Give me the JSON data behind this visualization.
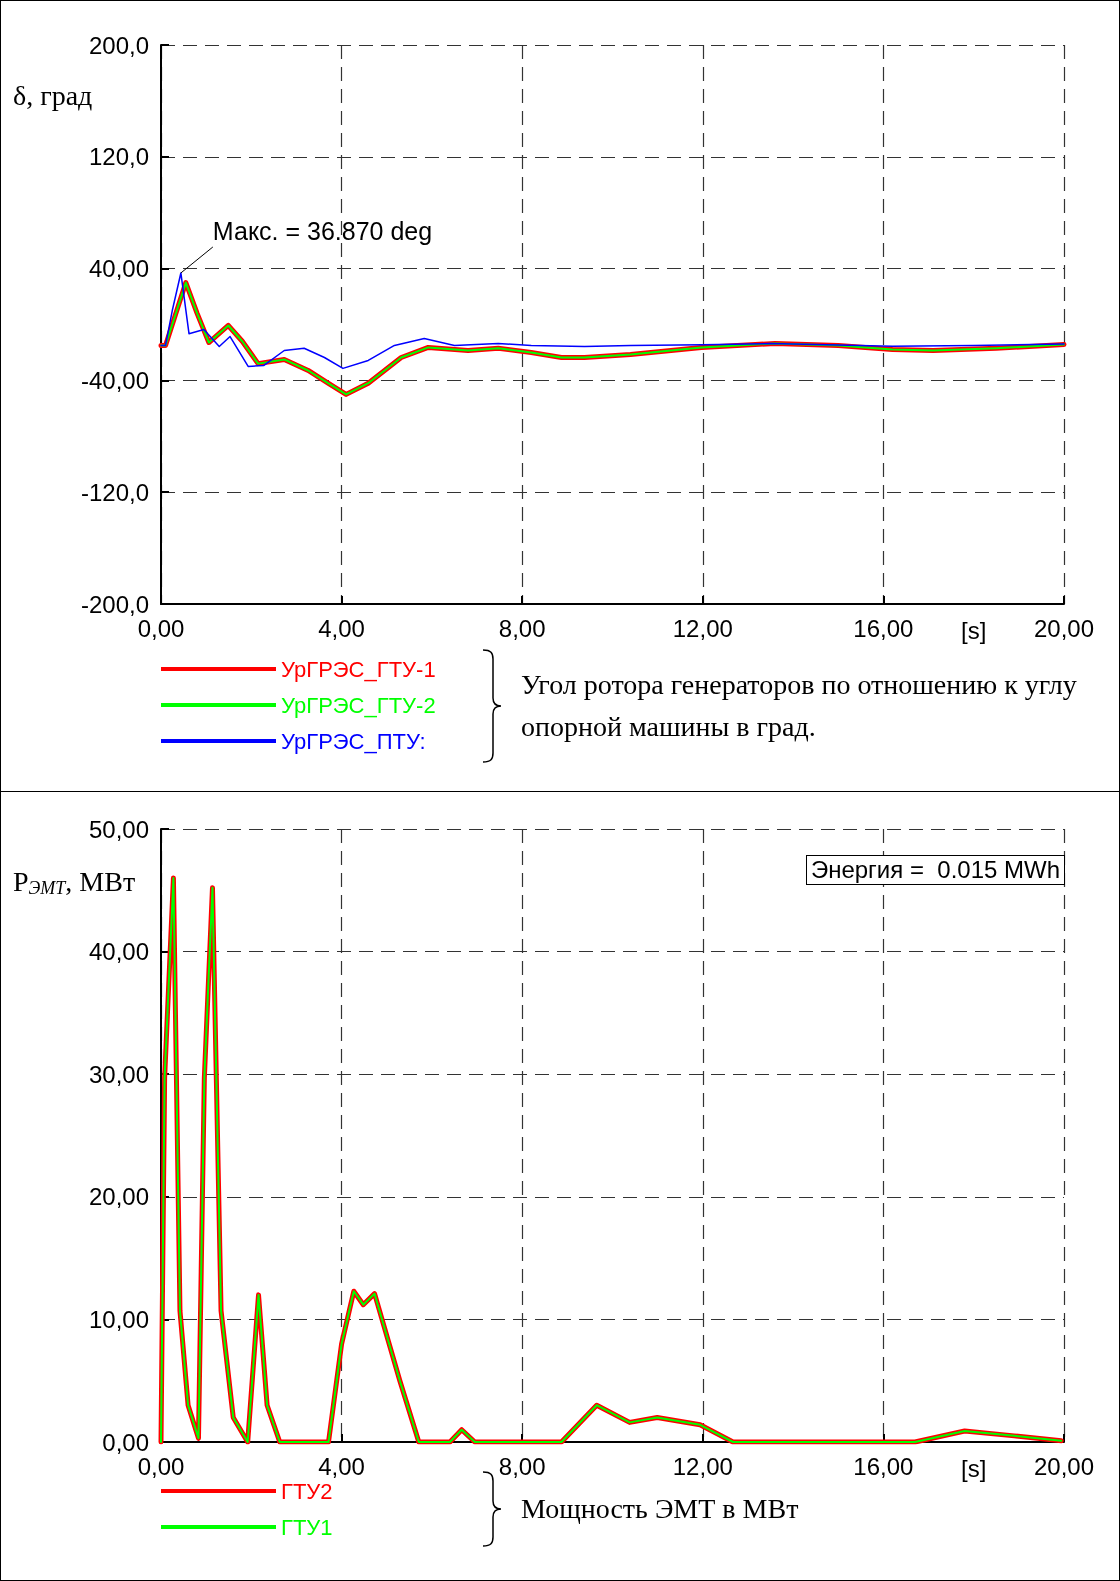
{
  "chart_data": [
    {
      "type": "line",
      "ylabel": "δ, град",
      "xlabel": "[s]",
      "xlim": [
        0,
        20
      ],
      "ylim": [
        -200,
        200
      ],
      "xticks": [
        {
          "value": 0,
          "label": "0,00"
        },
        {
          "value": 4,
          "label": "4,00"
        },
        {
          "value": 8,
          "label": "8,00"
        },
        {
          "value": 12,
          "label": "12,00"
        },
        {
          "value": 16,
          "label": "16,00"
        },
        {
          "value": 20,
          "label": "20,00"
        }
      ],
      "yticks": [
        {
          "value": -200,
          "label": "-200,0"
        },
        {
          "value": -120,
          "label": "-120,0"
        },
        {
          "value": -40,
          "label": "-40,00"
        },
        {
          "value": 40,
          "label": "40,00"
        },
        {
          "value": 120,
          "label": "120,0"
        },
        {
          "value": 200,
          "label": "200,0"
        }
      ],
      "grid": true,
      "legend": "bottom",
      "annotations": [
        {
          "text": "Макс. = 36.870 deg",
          "x": 0.44,
          "y": 36.87
        },
        "Угол ротора генераторов по отношению к углу опорной машины в град."
      ],
      "series": [
        {
          "name": "УрГРЭС_ГТУ-1",
          "color": "#ff0000",
          "x": [
            0,
            0.1,
            0.3,
            0.55,
            0.8,
            1.06,
            1.49,
            1.8,
            2.15,
            2.73,
            3.26,
            3.7,
            4.1,
            4.59,
            5.32,
            5.92,
            6.8,
            7.47,
            8.2,
            8.87,
            9.38,
            10.4,
            11.97,
            13.6,
            15,
            16.2,
            17.1,
            18.5,
            20
          ],
          "values": [
            -15,
            -15,
            5,
            30,
            8,
            -12.9,
            -0.7,
            -12,
            -28,
            -25,
            -32.9,
            -42,
            -50,
            -42,
            -23.6,
            -16.4,
            -18.6,
            -17,
            -20,
            -23.6,
            -23.6,
            -21.4,
            -16.4,
            -13.6,
            -15,
            -17.9,
            -18.6,
            -17,
            -14.3
          ]
        },
        {
          "name": "УрГРЭС_ГТУ-2",
          "color": "#00ff00",
          "x": [
            0,
            0.1,
            0.3,
            0.55,
            0.8,
            1.06,
            1.49,
            1.8,
            2.15,
            2.73,
            3.26,
            3.7,
            4.1,
            4.59,
            5.32,
            5.92,
            6.8,
            7.47,
            8.2,
            8.87,
            9.38,
            10.4,
            11.97,
            13.6,
            15,
            16.2,
            17.1,
            18.5,
            20
          ],
          "values": [
            -15,
            -15,
            5,
            30,
            8,
            -12.9,
            -0.7,
            -12,
            -28,
            -25,
            -32.9,
            -42,
            -50,
            -42,
            -23.6,
            -16.4,
            -18.6,
            -17,
            -20,
            -23.6,
            -23.6,
            -21.4,
            -16.4,
            -13.6,
            -15,
            -17.9,
            -18.6,
            -17,
            -14.3
          ]
        },
        {
          "name": "УрГРЭС_ПТУ:",
          "color": "#0000ff",
          "x": [
            0,
            0.1,
            0.25,
            0.44,
            0.62,
            0.95,
            1.29,
            1.53,
            1.93,
            2.28,
            2.73,
            3.17,
            3.62,
            4.03,
            4.59,
            5.17,
            5.83,
            6.5,
            7.47,
            8.2,
            9.38,
            10.4,
            12,
            13.5,
            16.2,
            18,
            20
          ],
          "values": [
            -15,
            -15,
            10,
            36.87,
            -6.6,
            -3.6,
            -15.7,
            -8.6,
            -30,
            -29.3,
            -18.6,
            -17,
            -23.6,
            -31.4,
            -25.7,
            -15,
            -10,
            -15,
            -13.6,
            -15,
            -15.7,
            -15,
            -14.5,
            -13.6,
            -15.5,
            -15,
            -13.9
          ]
        }
      ]
    },
    {
      "type": "line",
      "ylabel": "P$_{ЭМТ}$, МВт",
      "xlabel": "[s]",
      "xlim": [
        0,
        20
      ],
      "ylim": [
        0,
        50
      ],
      "xticks": [
        {
          "value": 0,
          "label": "0,00"
        },
        {
          "value": 4,
          "label": "4,00"
        },
        {
          "value": 8,
          "label": "8,00"
        },
        {
          "value": 12,
          "label": "12,00"
        },
        {
          "value": 16,
          "label": "16,00"
        },
        {
          "value": 20,
          "label": "20,00"
        }
      ],
      "yticks": [
        {
          "value": 0,
          "label": "0,00"
        },
        {
          "value": 10,
          "label": "10,00"
        },
        {
          "value": 20,
          "label": "20,00"
        },
        {
          "value": 30,
          "label": "30,00"
        },
        {
          "value": 40,
          "label": "40,00"
        },
        {
          "value": 50,
          "label": "50,00"
        }
      ],
      "grid": true,
      "legend": "bottom",
      "annotations": [
        "Энергия =  0.015 MWh",
        "Мощность ЭМТ в МВт"
      ],
      "series": [
        {
          "name": "ГТУ2",
          "color": "#ff0000",
          "x": [
            0,
            0.04,
            0.08,
            0.275,
            0.42,
            0.6,
            0.83,
            0.96,
            1.14,
            1.33,
            1.6,
            1.92,
            2.16,
            2.35,
            2.63,
            3.71,
            4.0,
            4.27,
            4.48,
            4.73,
            5.29,
            5.71,
            6.4,
            6.66,
            6.95,
            8.87,
            9.65,
            10.38,
            10.99,
            11.94,
            12.67,
            16.7,
            17.8,
            18.9,
            19.94
          ],
          "values": [
            0,
            15,
            29.7,
            46,
            10.7,
            3,
            0.3,
            29.7,
            45.2,
            10.7,
            2,
            0,
            12,
            3,
            0,
            0,
            8,
            12.3,
            11.2,
            12.1,
            5,
            0,
            0,
            1,
            0,
            0,
            3,
            1.6,
            2,
            1.4,
            0,
            0,
            0.9,
            0.5,
            0.1
          ]
        },
        {
          "name": "ГТУ1",
          "color": "#00ff00",
          "x": [
            0,
            0.04,
            0.08,
            0.275,
            0.42,
            0.6,
            0.83,
            0.96,
            1.14,
            1.33,
            1.6,
            1.92,
            2.16,
            2.35,
            2.63,
            3.71,
            4.0,
            4.27,
            4.48,
            4.73,
            5.29,
            5.71,
            6.4,
            6.66,
            6.95,
            8.87,
            9.65,
            10.38,
            10.99,
            11.94,
            12.67,
            16.7,
            17.8,
            18.9,
            19.94
          ],
          "values": [
            0,
            15,
            29.7,
            46,
            10.7,
            3,
            0.3,
            29.7,
            45.2,
            10.7,
            2,
            0,
            12,
            3,
            0,
            0,
            8,
            12.3,
            11.2,
            12.1,
            5,
            0,
            0,
            1,
            0,
            0,
            3,
            1.6,
            2,
            1.4,
            0,
            0,
            0.9,
            0.5,
            0.1
          ]
        }
      ]
    }
  ]
}
